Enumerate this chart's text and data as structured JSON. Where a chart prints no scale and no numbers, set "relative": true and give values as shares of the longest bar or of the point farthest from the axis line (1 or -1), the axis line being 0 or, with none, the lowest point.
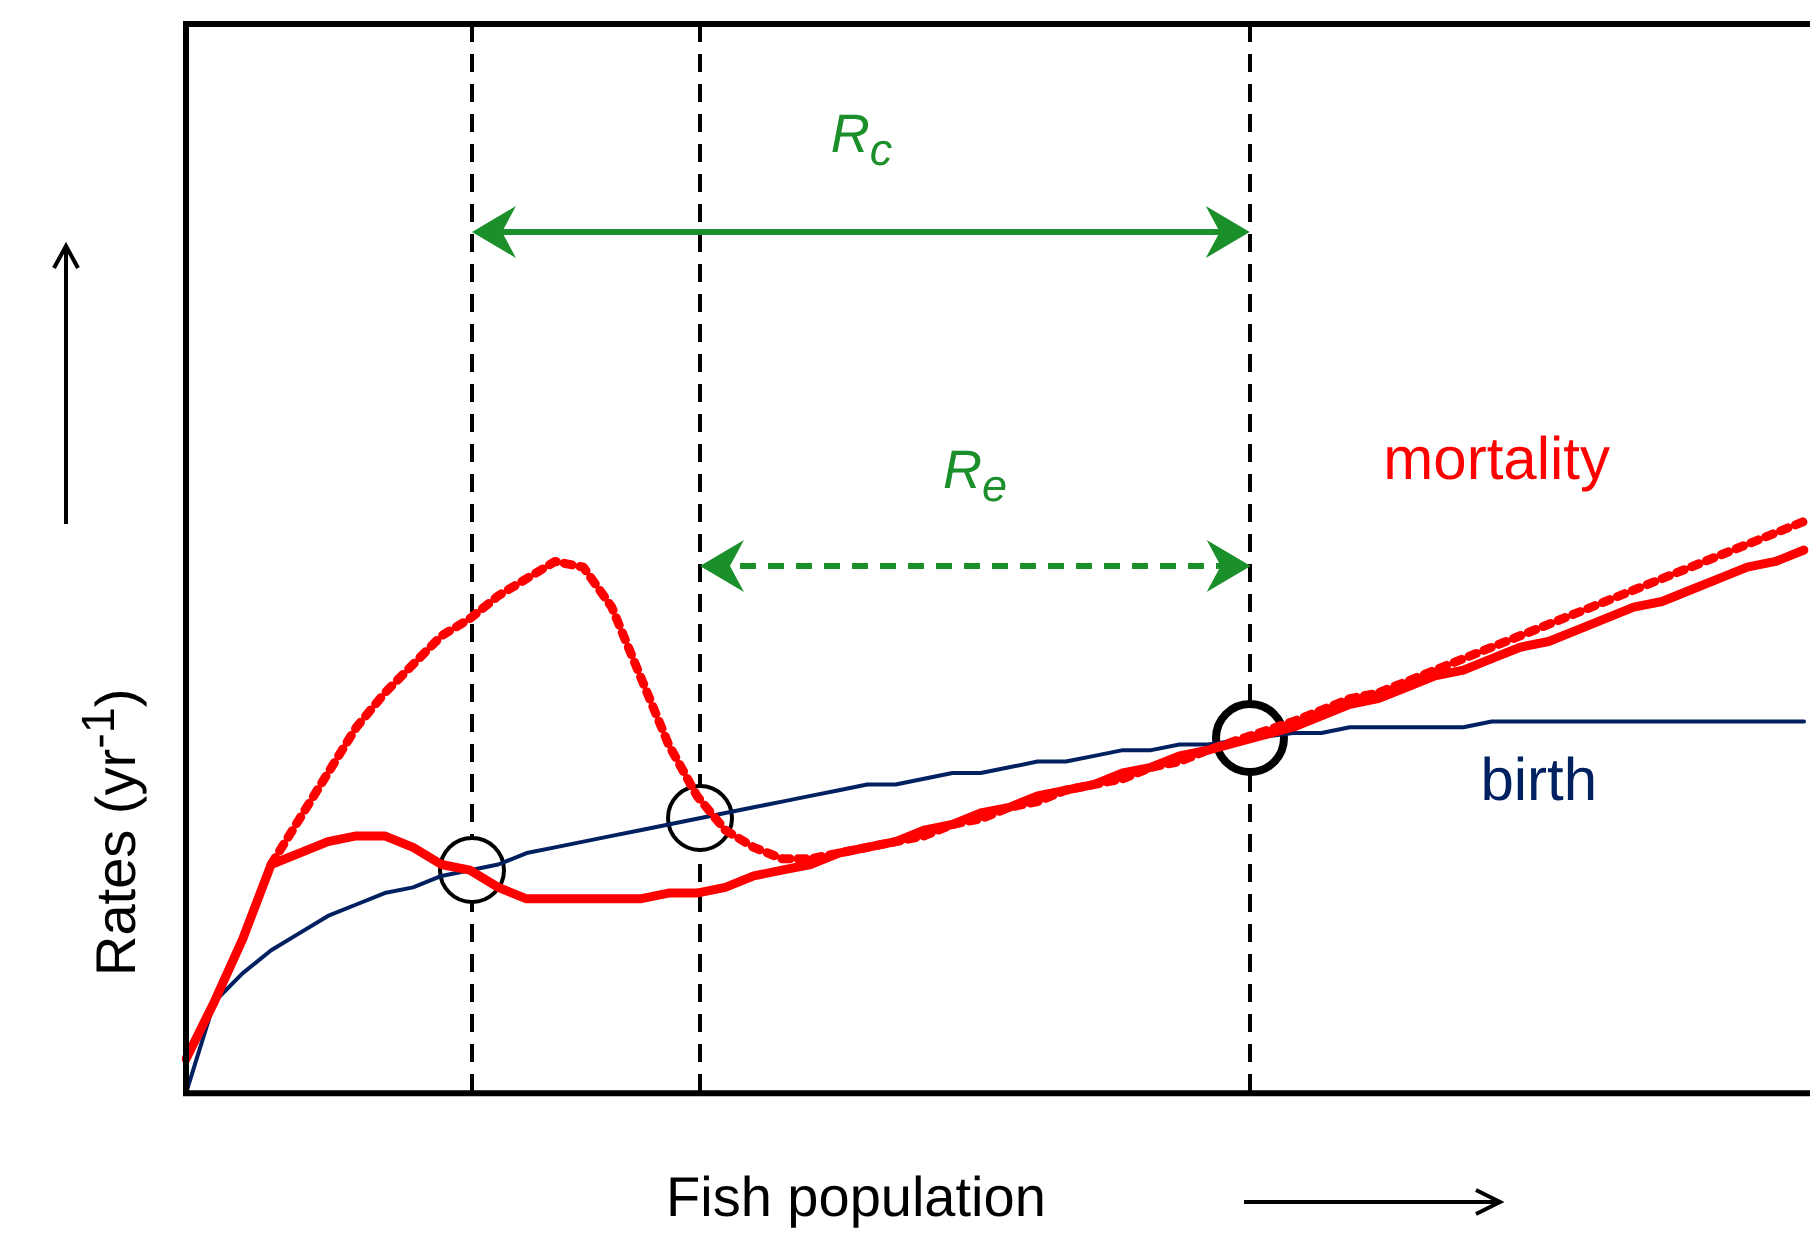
{
  "chart_data": {
    "type": "line",
    "relative": true,
    "grid": false,
    "legend": false,
    "xlabel": "Fish population",
    "ylabel": "Rates (yr$^{-1}$)",
    "annotations": [
      "R$_{c}$",
      "R$_{e}$"
    ],
    "categories": [
      null,
      null,
      null,
      null,
      null,
      null,
      null,
      null,
      null,
      null,
      null,
      null,
      null,
      null,
      null,
      null,
      null,
      null,
      null,
      null,
      null,
      null,
      null,
      null,
      null,
      null,
      null,
      null,
      null,
      null,
      null,
      null,
      null,
      null,
      null,
      null,
      null,
      null,
      null,
      null,
      null,
      null,
      null,
      null,
      null,
      null,
      null,
      null,
      null,
      null,
      null,
      null,
      null,
      null,
      null,
      null,
      null,
      null
    ],
    "series": [
      {
        "name": "mortality",
        "color": "#ff0000",
        "line_style": "solid",
        "values": [
          0.06,
          0.16,
          0.27,
          0.4,
          0.42,
          0.44,
          0.45,
          0.45,
          0.43,
          0.4,
          0.39,
          0.36,
          0.34,
          0.34,
          0.34,
          0.34,
          0.34,
          0.35,
          0.35,
          0.36,
          0.38,
          0.39,
          0.4,
          0.42,
          0.43,
          0.44,
          0.46,
          0.47,
          0.49,
          0.5,
          0.52,
          0.53,
          0.54,
          0.56,
          0.57,
          0.59,
          0.6,
          null,
          null,
          0.64,
          0.66,
          0.68,
          0.69,
          0.71,
          0.73,
          0.74,
          0.76,
          0.78,
          0.79,
          0.81,
          0.83,
          0.85,
          0.86,
          0.88,
          0.9,
          0.92,
          0.93,
          0.95
        ]
      },
      {
        "color": "#ff0000",
        "line_style": "dotted",
        "values": [
          null,
          null,
          null,
          0.4,
          0.48,
          0.56,
          0.64,
          0.7,
          0.75,
          0.8,
          0.83,
          0.87,
          0.9,
          0.93,
          0.92,
          0.85,
          0.73,
          0.61,
          0.52,
          0.46,
          0.43,
          0.41,
          0.41,
          0.42,
          0.43,
          0.44,
          0.45,
          0.47,
          0.48,
          0.5,
          0.51,
          0.53,
          0.54,
          0.55,
          0.57,
          0.58,
          0.6,
          null,
          null,
          0.65,
          0.67,
          0.69,
          0.7,
          0.72,
          0.74,
          0.76,
          0.78,
          0.8,
          0.82,
          0.84,
          0.86,
          0.88,
          0.9,
          0.92,
          0.94,
          0.96,
          0.98,
          1
        ]
      },
      {
        "name": "birth",
        "color": "#002060",
        "line_style": "solid",
        "values": [
          0,
          0.16,
          0.21,
          0.25,
          0.28,
          0.31,
          0.33,
          0.35,
          0.36,
          0.38,
          0.39,
          0.4,
          0.42,
          0.43,
          0.44,
          0.45,
          0.46,
          0.47,
          0.48,
          0.49,
          0.5,
          0.51,
          0.52,
          0.53,
          0.54,
          0.54,
          0.55,
          0.56,
          0.56,
          0.57,
          0.58,
          0.58,
          0.59,
          0.6,
          0.6,
          0.61,
          0.61,
          null,
          null,
          0.63,
          0.63,
          0.64,
          0.64,
          0.64,
          0.64,
          0.64,
          0.65,
          0.65,
          0.65,
          0.65,
          0.65,
          0.65,
          0.65,
          0.65,
          0.65,
          0.65,
          0.65,
          0.65
        ]
      }
    ]
  }
}
